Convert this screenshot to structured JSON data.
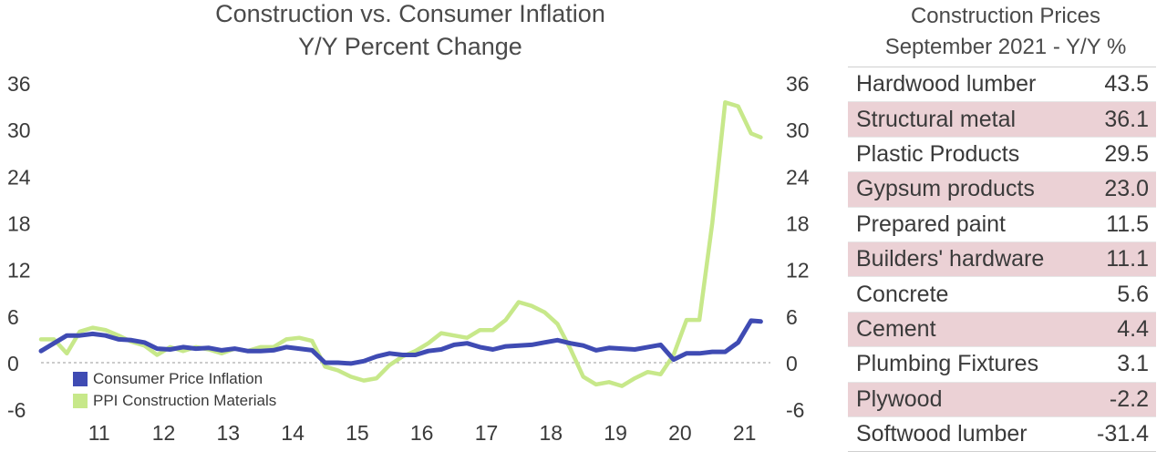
{
  "chart_data": {
    "type": "line",
    "title": "Construction vs. Consumer Inflation",
    "subtitle": "Y/Y Percent Change",
    "ylim": [
      -6,
      36
    ],
    "y_ticks": [
      36,
      30,
      24,
      18,
      12,
      6,
      0,
      -6
    ],
    "x_ticks": [
      "11",
      "12",
      "13",
      "14",
      "15",
      "16",
      "17",
      "18",
      "19",
      "20",
      "21"
    ],
    "xlim": [
      2010.6,
      2021.9
    ],
    "grid": false,
    "legend_position": "bottom-left",
    "series": [
      {
        "name": "Consumer Price Inflation",
        "color": "#3f4bb3",
        "x": [
          2010.6,
          2010.8,
          2011.0,
          2011.2,
          2011.4,
          2011.6,
          2011.8,
          2012.0,
          2012.2,
          2012.4,
          2012.6,
          2012.8,
          2013.0,
          2013.2,
          2013.4,
          2013.6,
          2013.8,
          2014.0,
          2014.2,
          2014.4,
          2014.6,
          2014.8,
          2015.0,
          2015.2,
          2015.4,
          2015.6,
          2015.8,
          2016.0,
          2016.2,
          2016.4,
          2016.6,
          2016.8,
          2017.0,
          2017.2,
          2017.4,
          2017.6,
          2017.8,
          2018.0,
          2018.2,
          2018.4,
          2018.6,
          2018.8,
          2019.0,
          2019.2,
          2019.4,
          2019.6,
          2019.8,
          2020.0,
          2020.2,
          2020.4,
          2020.6,
          2020.8,
          2021.0,
          2021.2,
          2021.4,
          2021.6,
          2021.75
        ],
        "values": [
          1.5,
          2.5,
          3.5,
          3.5,
          3.7,
          3.5,
          3.0,
          2.9,
          2.6,
          1.8,
          1.7,
          2.0,
          1.8,
          1.9,
          1.6,
          1.8,
          1.5,
          1.5,
          1.6,
          2.0,
          1.8,
          1.6,
          0.0,
          0.0,
          -0.1,
          0.2,
          0.8,
          1.2,
          1.0,
          1.0,
          1.5,
          1.7,
          2.3,
          2.5,
          2.0,
          1.7,
          2.1,
          2.2,
          2.3,
          2.6,
          2.9,
          2.5,
          2.2,
          1.6,
          1.9,
          1.8,
          1.7,
          2.0,
          2.3,
          0.4,
          1.2,
          1.2,
          1.4,
          1.4,
          2.6,
          5.4,
          5.3
        ]
      },
      {
        "name": "PPI Construction Materials",
        "color": "#c7e88a",
        "x": [
          2010.6,
          2010.8,
          2011.0,
          2011.2,
          2011.4,
          2011.6,
          2011.8,
          2012.0,
          2012.2,
          2012.4,
          2012.6,
          2012.8,
          2013.0,
          2013.2,
          2013.4,
          2013.6,
          2013.8,
          2014.0,
          2014.2,
          2014.4,
          2014.6,
          2014.8,
          2015.0,
          2015.2,
          2015.4,
          2015.6,
          2015.8,
          2016.0,
          2016.2,
          2016.4,
          2016.6,
          2016.8,
          2017.0,
          2017.2,
          2017.4,
          2017.6,
          2017.8,
          2018.0,
          2018.2,
          2018.4,
          2018.6,
          2018.8,
          2019.0,
          2019.2,
          2019.4,
          2019.6,
          2019.8,
          2020.0,
          2020.2,
          2020.4,
          2020.6,
          2020.8,
          2021.0,
          2021.2,
          2021.4,
          2021.6,
          2021.75
        ],
        "values": [
          3.0,
          3.0,
          1.2,
          4.0,
          4.5,
          4.2,
          3.5,
          2.7,
          2.2,
          1.0,
          2.0,
          1.5,
          2.0,
          1.7,
          1.2,
          1.8,
          1.5,
          2.0,
          2.0,
          3.0,
          3.2,
          2.8,
          -0.5,
          -1.0,
          -1.8,
          -2.3,
          -2.0,
          -0.3,
          0.8,
          1.5,
          2.5,
          3.8,
          3.5,
          3.2,
          4.2,
          4.2,
          5.5,
          7.8,
          7.3,
          6.5,
          5.0,
          1.8,
          -1.8,
          -2.8,
          -2.5,
          -3.0,
          -2.0,
          -1.2,
          -1.5,
          1.0,
          5.5,
          5.5,
          18.0,
          33.5,
          33.0,
          29.5,
          29.0
        ]
      }
    ]
  },
  "table": {
    "title": "Construction Prices",
    "subtitle": "September 2021 - Y/Y %",
    "rows": [
      {
        "label": "Hardwood lumber",
        "value": "43.5"
      },
      {
        "label": "Structural metal",
        "value": "36.1"
      },
      {
        "label": "Plastic Products",
        "value": "29.5"
      },
      {
        "label": "Gypsum products",
        "value": "23.0"
      },
      {
        "label": "Prepared paint",
        "value": "11.5"
      },
      {
        "label": "Builders' hardware",
        "value": "11.1"
      },
      {
        "label": "Concrete",
        "value": "5.6"
      },
      {
        "label": "Cement",
        "value": "4.4"
      },
      {
        "label": "Plumbing Fixtures",
        "value": "3.1"
      },
      {
        "label": "Plywood",
        "value": "-2.2"
      },
      {
        "label": "Softwood lumber",
        "value": "-31.4"
      }
    ],
    "shaded_row_color": "#ebd1d5"
  }
}
